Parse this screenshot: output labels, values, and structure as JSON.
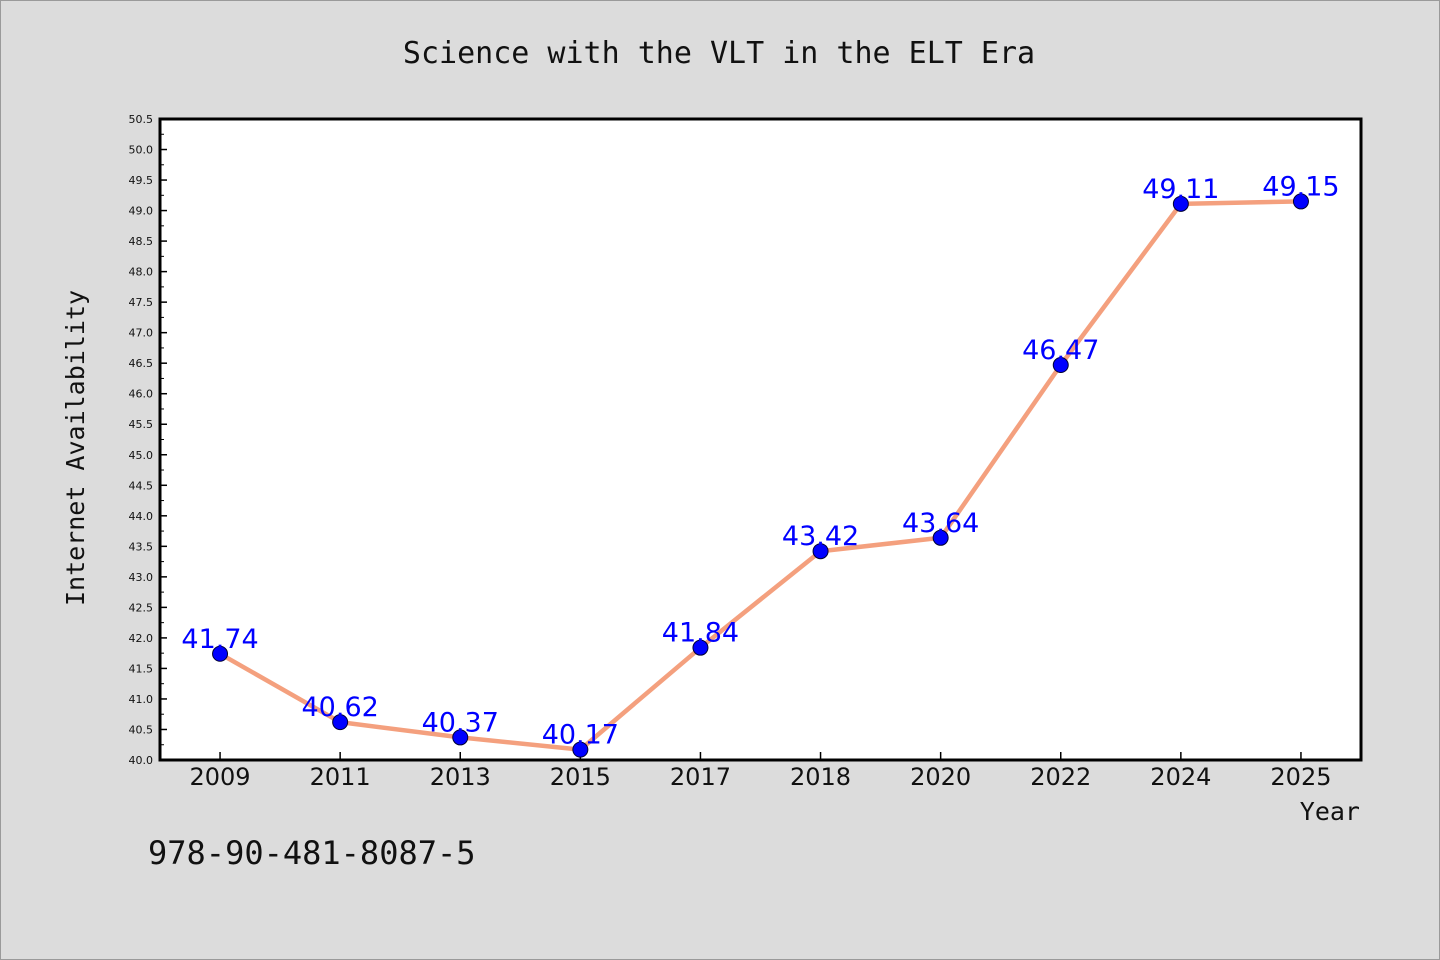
{
  "chart_data": {
    "type": "line",
    "title": "Science with the VLT in the ELT Era",
    "xlabel": "Year",
    "ylabel": "Internet Availability",
    "categories": [
      "2009",
      "2011",
      "2013",
      "2015",
      "2017",
      "2018",
      "2020",
      "2022",
      "2024",
      "2025"
    ],
    "series": [
      {
        "values": [
          41.74,
          40.62,
          40.37,
          40.17,
          41.84,
          43.42,
          43.64,
          46.47,
          49.11,
          49.15
        ],
        "data_labels": [
          "41.74",
          "40.62",
          "40.37",
          "40.17",
          "41.84",
          "43.42",
          "43.64",
          "46.47",
          "49.11",
          "49.15"
        ]
      }
    ],
    "ylim": [
      40.0,
      50.5
    ],
    "yticks": [
      "40.0",
      "40.5",
      "41.0",
      "41.5",
      "42.0",
      "42.5",
      "43.0",
      "43.5",
      "44.0",
      "44.5",
      "45.0",
      "45.5",
      "46.0",
      "46.5",
      "47.0",
      "47.5",
      "48.0",
      "48.5",
      "49.0",
      "49.5",
      "50.0",
      "50.5"
    ],
    "grid": false,
    "legend": "none",
    "colors": {
      "line": "#f4a07e",
      "marker": "#0000ff",
      "label": "#0000ff",
      "plot_bg": "#ffffff",
      "page_bg": "#dcdcdc"
    }
  },
  "footer": {
    "code": "978-90-481-8087-5"
  }
}
